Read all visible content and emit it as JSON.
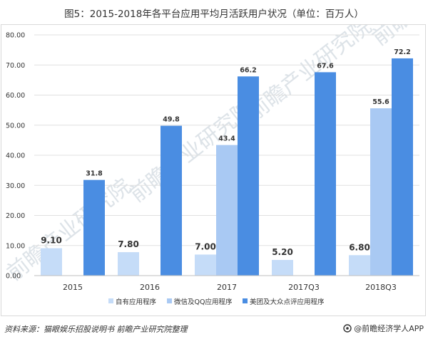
{
  "title": "图5：2015-2018年各平台应用平均月活跃用户状况（单位：百万人）",
  "source": "资料来源：猫眼娱乐招股说明书 前瞻产业研究院整理",
  "brand": "@前瞻经济学人APP",
  "watermark": "前瞻产业研究院",
  "colors": {
    "series1": "#c5dcf8",
    "series2": "#a9c9f3",
    "series3": "#4a8de2",
    "grid": "#e0e0e0",
    "axis_text": "#333333",
    "watermark": "#dde3e8"
  },
  "chart_data": {
    "type": "bar",
    "categories": [
      "2015",
      "2016",
      "2017",
      "2017Q3",
      "2018Q3"
    ],
    "ylim": [
      0,
      80
    ],
    "yticks": [
      "0.00",
      "10.00",
      "20.00",
      "30.00",
      "40.00",
      "50.00",
      "60.00",
      "70.00",
      "80.00"
    ],
    "series": [
      {
        "name": "自有应用程序",
        "values": [
          9.1,
          7.8,
          7.0,
          5.2,
          6.8
        ],
        "labels": [
          "9.10",
          "7.80",
          "7.00",
          "5.20",
          "6.80"
        ]
      },
      {
        "name": "微信及QQ应用程序",
        "values": [
          null,
          null,
          43.4,
          null,
          55.6
        ],
        "labels": [
          "",
          "",
          "43.4",
          "",
          "55.6"
        ]
      },
      {
        "name": "美团及大众点评应用程序",
        "values": [
          31.8,
          49.8,
          66.2,
          67.6,
          72.2
        ],
        "labels": [
          "31.8",
          "49.8",
          "66.2",
          "67.6",
          "72.2"
        ]
      }
    ],
    "legend_position": "bottom",
    "grid": true
  }
}
